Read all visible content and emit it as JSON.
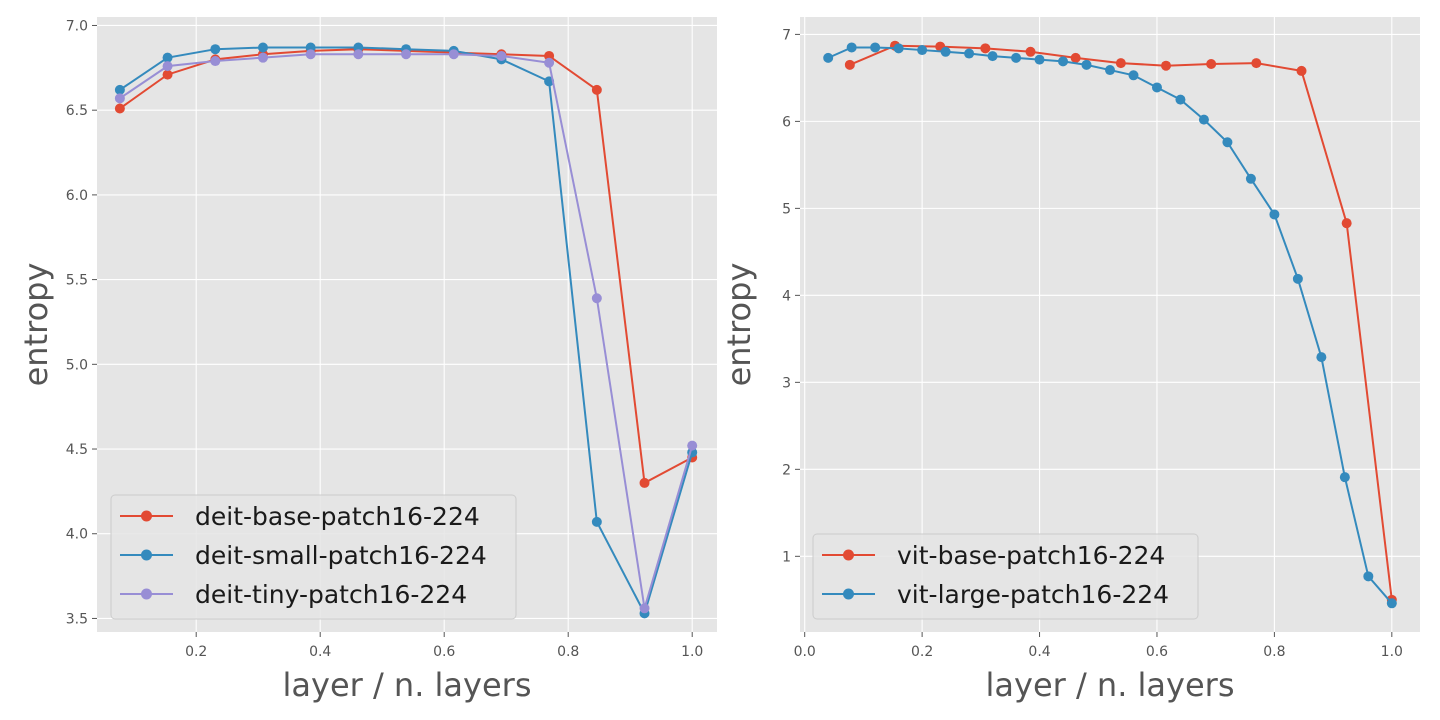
{
  "chart_data": [
    {
      "type": "line",
      "xlabel": "layer / n. layers",
      "ylabel": "entropy",
      "xlim": [
        0.04,
        1.04
      ],
      "ylim": [
        3.42,
        7.05
      ],
      "xticks": [
        0.2,
        0.4,
        0.6,
        0.8,
        1.0
      ],
      "xtick_labels": [
        "0.2",
        "0.4",
        "0.6",
        "0.8",
        "1.0"
      ],
      "yticks": [
        3.5,
        4.0,
        4.5,
        5.0,
        5.5,
        6.0,
        6.5,
        7.0
      ],
      "ytick_labels": [
        "3.5",
        "4.0",
        "4.5",
        "5.0",
        "5.5",
        "6.0",
        "6.5",
        "7.0"
      ],
      "grid": true,
      "legend_position": "lower-left",
      "series": [
        {
          "name": "deit-base-patch16-224",
          "color": "#e24a33",
          "x": [
            0.0769,
            0.1538,
            0.2308,
            0.3077,
            0.3846,
            0.4615,
            0.5385,
            0.6154,
            0.6923,
            0.7692,
            0.8462,
            0.9231,
            1.0
          ],
          "y": [
            6.51,
            6.71,
            6.8,
            6.83,
            6.85,
            6.86,
            6.85,
            6.84,
            6.83,
            6.82,
            6.62,
            4.3,
            4.45
          ]
        },
        {
          "name": "deit-small-patch16-224",
          "color": "#348abd",
          "x": [
            0.0769,
            0.1538,
            0.2308,
            0.3077,
            0.3846,
            0.4615,
            0.5385,
            0.6154,
            0.6923,
            0.7692,
            0.8462,
            0.9231,
            1.0
          ],
          "y": [
            6.62,
            6.81,
            6.86,
            6.87,
            6.87,
            6.87,
            6.86,
            6.85,
            6.8,
            6.67,
            4.07,
            3.53,
            4.48
          ]
        },
        {
          "name": "deit-tiny-patch16-224",
          "color": "#988ed5",
          "x": [
            0.0769,
            0.1538,
            0.2308,
            0.3077,
            0.3846,
            0.4615,
            0.5385,
            0.6154,
            0.6923,
            0.7692,
            0.8462,
            0.9231,
            1.0
          ],
          "y": [
            6.57,
            6.76,
            6.79,
            6.81,
            6.83,
            6.83,
            6.83,
            6.83,
            6.82,
            6.78,
            5.39,
            3.56,
            4.52
          ]
        }
      ]
    },
    {
      "type": "line",
      "xlabel": "layer / n. layers",
      "ylabel": "entropy",
      "xlim": [
        -0.008,
        1.048
      ],
      "ylim": [
        0.13,
        7.2
      ],
      "xticks": [
        0.0,
        0.2,
        0.4,
        0.6,
        0.8,
        1.0
      ],
      "xtick_labels": [
        "0.0",
        "0.2",
        "0.4",
        "0.6",
        "0.8",
        "1.0"
      ],
      "yticks": [
        1,
        2,
        3,
        4,
        5,
        6,
        7
      ],
      "ytick_labels": [
        "1",
        "2",
        "3",
        "4",
        "5",
        "6",
        "7"
      ],
      "grid": true,
      "legend_position": "lower-left",
      "series": [
        {
          "name": "vit-base-patch16-224",
          "color": "#e24a33",
          "x": [
            0.0769,
            0.1538,
            0.2308,
            0.3077,
            0.3846,
            0.4615,
            0.5385,
            0.6154,
            0.6923,
            0.7692,
            0.8462,
            0.9231,
            1.0
          ],
          "y": [
            6.65,
            6.87,
            6.86,
            6.84,
            6.8,
            6.73,
            6.67,
            6.64,
            6.66,
            6.67,
            6.58,
            4.83,
            0.5
          ]
        },
        {
          "name": "vit-large-patch16-224",
          "color": "#348abd",
          "x": [
            0.04,
            0.08,
            0.12,
            0.16,
            0.2,
            0.24,
            0.28,
            0.32,
            0.36,
            0.4,
            0.44,
            0.48,
            0.52,
            0.56,
            0.6,
            0.64,
            0.68,
            0.72,
            0.76,
            0.8,
            0.84,
            0.88,
            0.92,
            0.96,
            1.0
          ],
          "y": [
            6.73,
            6.85,
            6.85,
            6.84,
            6.82,
            6.8,
            6.78,
            6.75,
            6.73,
            6.71,
            6.69,
            6.65,
            6.59,
            6.53,
            6.39,
            6.25,
            6.02,
            5.76,
            5.34,
            4.93,
            4.19,
            3.29,
            1.91,
            0.77,
            0.46
          ]
        }
      ]
    }
  ]
}
